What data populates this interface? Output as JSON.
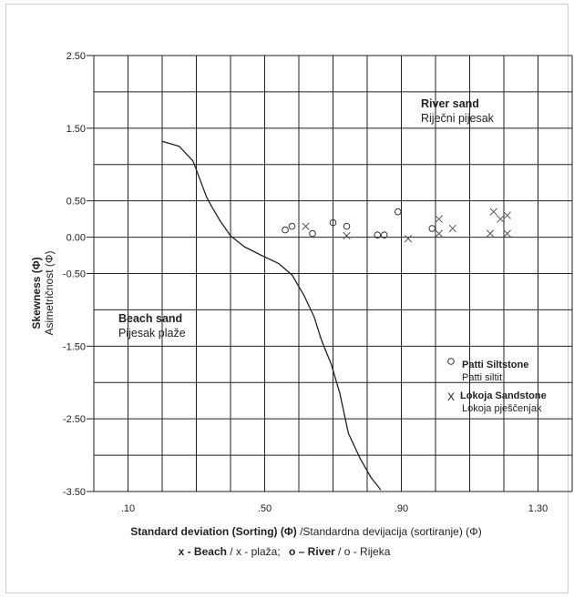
{
  "chart_data": {
    "type": "scatter",
    "title": "",
    "xlabel_bold": "Standard deviation (Sorting)",
    "xlabel_mid": "(Φ)",
    "xlabel_rest": "/Standardna devijacija (sortiranje) (Φ)",
    "legend_line": {
      "x_bold": "x - Beach",
      "x_rest": " / x - plaža;",
      "o_bold": "o – River",
      "o_rest": " / o - Rijeka"
    },
    "ylabel_bold": "Skewness (Φ)",
    "ylabel_sub": "Asimetričnost (Φ)",
    "xlim": [
      0.0,
      1.4
    ],
    "ylim": [
      -3.5,
      2.5
    ],
    "x_tick_labels": [
      {
        "value": 0.1,
        "label": ".10"
      },
      {
        "value": 0.5,
        "label": ".50"
      },
      {
        "value": 0.9,
        "label": ".90"
      },
      {
        "value": 1.3,
        "label": "1.30"
      }
    ],
    "y_tick_labels": [
      {
        "value": 2.5,
        "label": "2.50"
      },
      {
        "value": 1.5,
        "label": "1.50"
      },
      {
        "value": 0.5,
        "label": "0.50"
      },
      {
        "value": 0.0,
        "label": "0.00"
      },
      {
        "value": -0.5,
        "label": "-0.50"
      },
      {
        "value": -1.5,
        "label": "-1.50"
      },
      {
        "value": -2.5,
        "label": "-2.50"
      },
      {
        "value": -3.5,
        "label": "-3.50"
      }
    ],
    "x_grid": [
      0.0,
      0.1,
      0.2,
      0.3,
      0.4,
      0.5,
      0.6,
      0.7,
      0.8,
      0.9,
      1.0,
      1.1,
      1.2,
      1.3,
      1.4
    ],
    "y_grid": [
      2.5,
      2.0,
      1.5,
      1.0,
      0.5,
      0.0,
      -0.5,
      -1.0,
      -1.5,
      -2.0,
      -2.5,
      -3.0,
      -3.5
    ],
    "boundary_curve": [
      [
        0.2,
        1.32
      ],
      [
        0.25,
        1.25
      ],
      [
        0.29,
        1.05
      ],
      [
        0.31,
        0.8
      ],
      [
        0.33,
        0.55
      ],
      [
        0.345,
        0.42
      ],
      [
        0.37,
        0.22
      ],
      [
        0.4,
        0.02
      ],
      [
        0.44,
        -0.13
      ],
      [
        0.49,
        -0.25
      ],
      [
        0.54,
        -0.36
      ],
      [
        0.58,
        -0.52
      ],
      [
        0.615,
        -0.8
      ],
      [
        0.645,
        -1.1
      ],
      [
        0.665,
        -1.4
      ],
      [
        0.675,
        -1.52
      ],
      [
        0.695,
        -1.75
      ],
      [
        0.72,
        -2.15
      ],
      [
        0.745,
        -2.7
      ],
      [
        0.78,
        -3.05
      ],
      [
        0.81,
        -3.3
      ],
      [
        0.84,
        -3.48
      ]
    ],
    "region_labels": {
      "river_bold": "River sand",
      "river_sub": "Riječni pijesak",
      "beach_bold": "Beach sand",
      "beach_sub": "Pijesak plaže"
    },
    "series": [
      {
        "name": "Patti Siltstone",
        "marker": "o",
        "points": [
          [
            0.56,
            0.1
          ],
          [
            0.58,
            0.15
          ],
          [
            0.64,
            0.05
          ],
          [
            0.7,
            0.2
          ],
          [
            0.74,
            0.15
          ],
          [
            0.83,
            0.03
          ],
          [
            0.85,
            0.03
          ],
          [
            0.89,
            0.35
          ],
          [
            0.99,
            0.12
          ]
        ]
      },
      {
        "name": "Lokoja Sandstone",
        "marker": "x",
        "points": [
          [
            0.62,
            0.15
          ],
          [
            0.74,
            0.02
          ],
          [
            0.92,
            -0.02
          ],
          [
            1.01,
            0.25
          ],
          [
            1.01,
            0.05
          ],
          [
            1.05,
            0.12
          ],
          [
            1.16,
            0.05
          ],
          [
            1.17,
            0.35
          ],
          [
            1.19,
            0.25
          ],
          [
            1.21,
            0.3
          ],
          [
            1.21,
            0.05
          ]
        ]
      }
    ],
    "legend": {
      "placement": "bottom-right",
      "patti_bold": "Patti Siltstone",
      "patti_sub": "Patti siltit",
      "lokoja_bold": "Lokoja Sandstone",
      "lokoja_sub": "Lokoja pješčenjak"
    },
    "grid": true
  }
}
